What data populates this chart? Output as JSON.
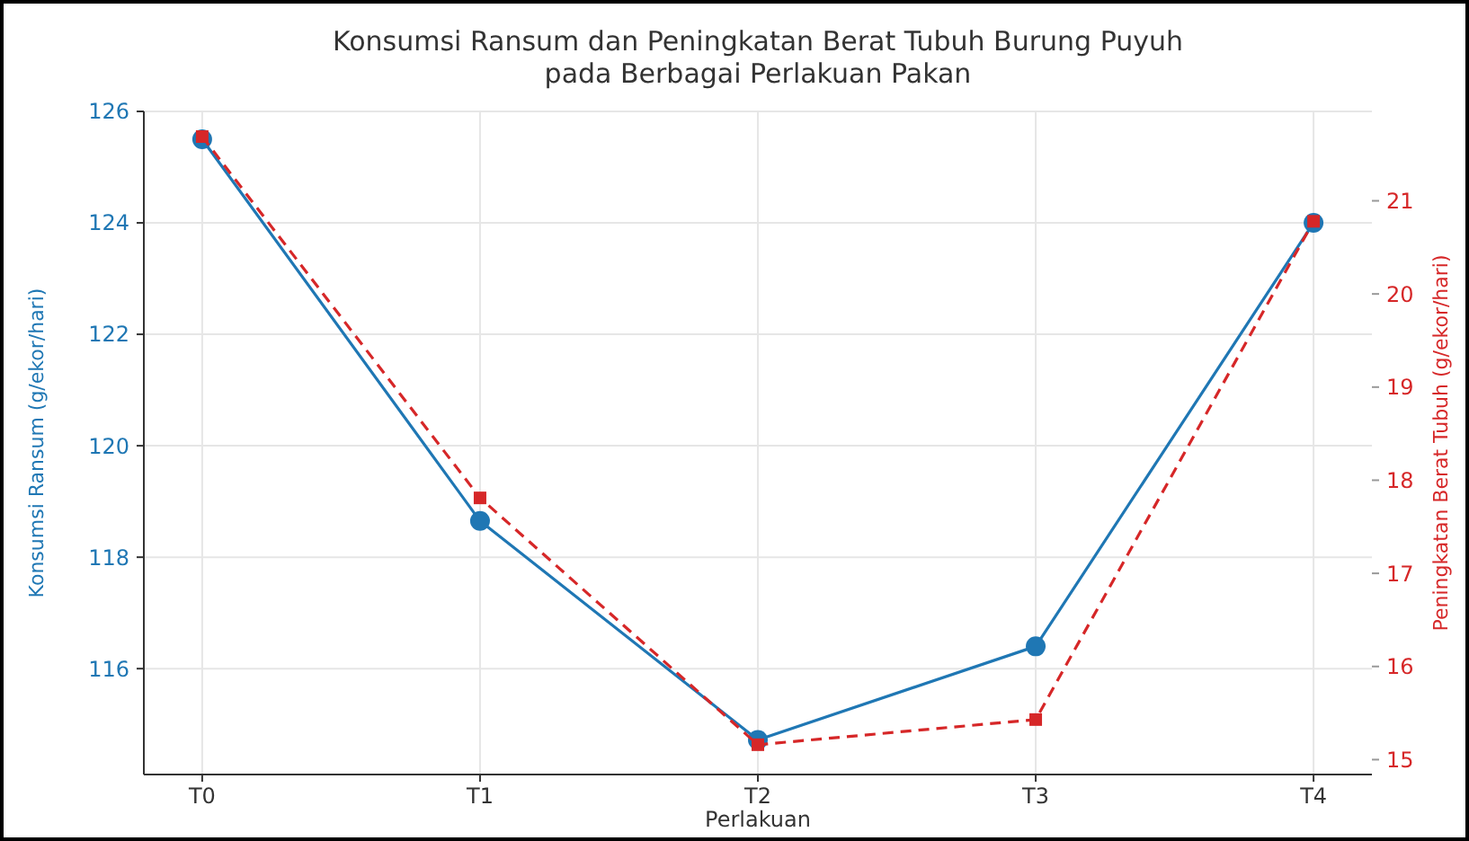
{
  "chart_data": {
    "type": "line",
    "title": "Konsumsi Ransum dan Peningkatan Berat Tubuh Burung Puyuh\npada Berbagai Perlakuan Pakan",
    "xlabel": "Perlakuan",
    "ylabel": "Konsumsi Ransum (g/ekor/hari)",
    "y2label": "Peningkatan Berat Tubuh (g/ekor/hari)",
    "categories": [
      "T0",
      "T1",
      "T2",
      "T3",
      "T4"
    ],
    "series": [
      {
        "color": "#1f77b4",
        "values": [
          125.5,
          118.65,
          114.72,
          116.4,
          124.0
        ],
        "marker": "circle",
        "line_style": "solid"
      },
      {
        "color": "#d62728",
        "values": [
          21.69,
          17.81,
          15.16,
          15.43,
          20.78
        ],
        "marker": "square",
        "line_style": "dashed",
        "axis": "y2"
      }
    ],
    "ylim": [
      114.1,
      126.0
    ],
    "yticks": [
      116,
      118,
      120,
      122,
      124,
      126
    ],
    "y2lim": [
      14.84,
      21.96
    ],
    "y2ticks": [
      15,
      16,
      17,
      18,
      19,
      20,
      21
    ],
    "grid": true
  }
}
